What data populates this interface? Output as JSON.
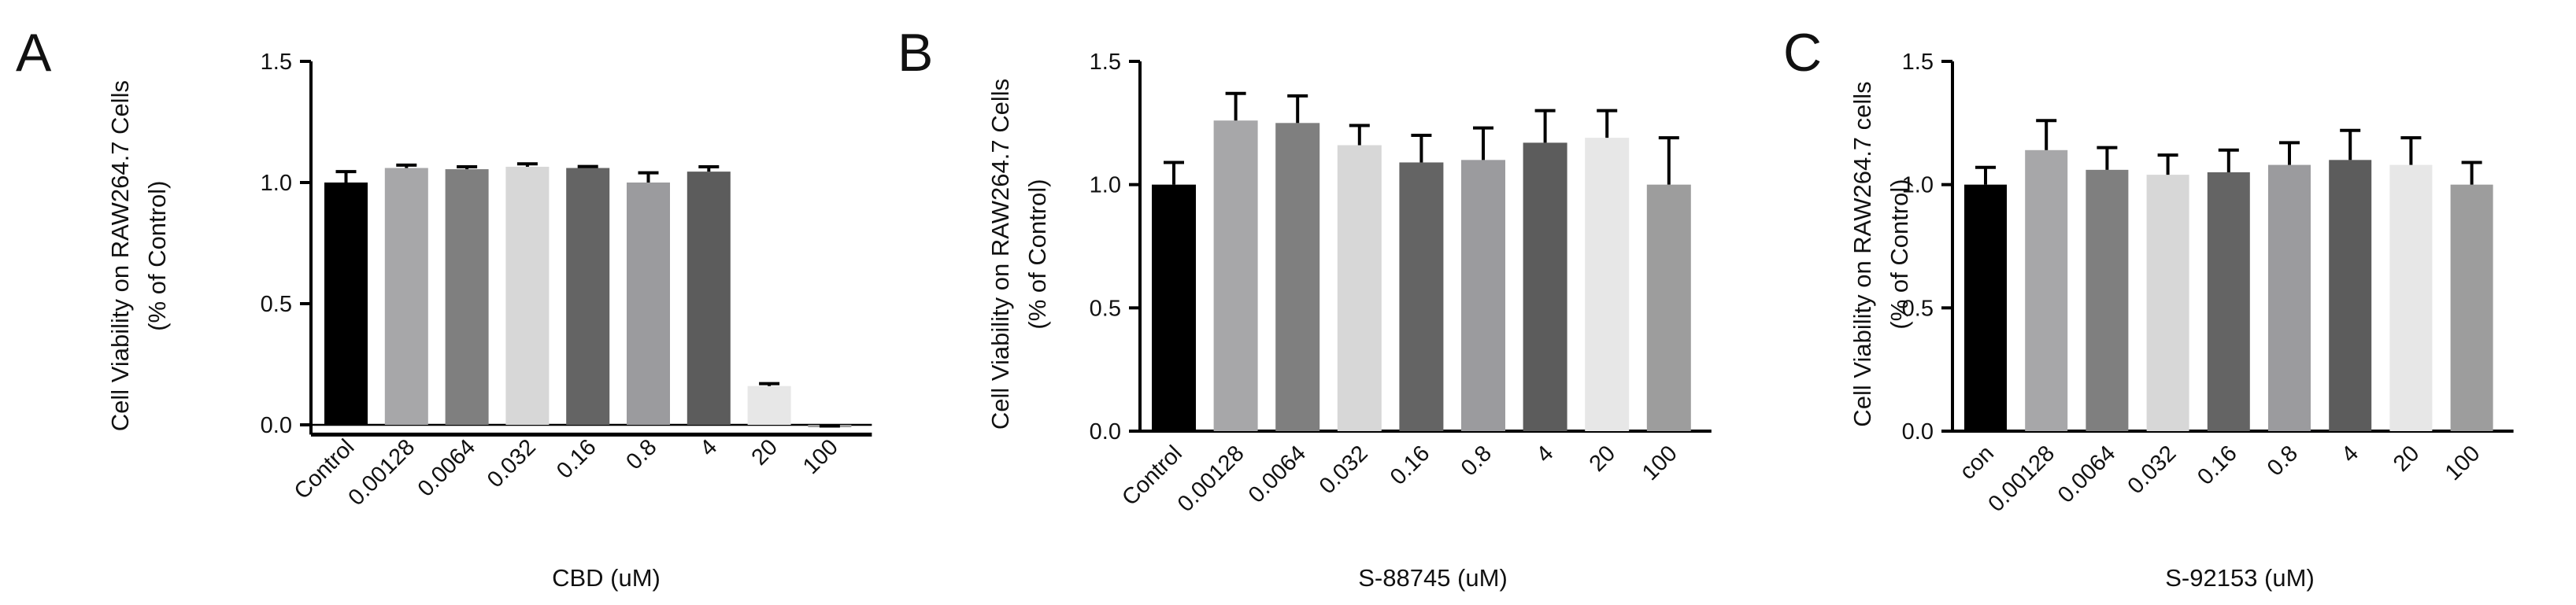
{
  "chart_data": [
    {
      "type": "bar",
      "panel_label": "A",
      "categories": [
        "Control",
        "0.00128",
        "0.0064",
        "0.032",
        "0.16",
        "0.8",
        "4",
        "20",
        "100"
      ],
      "values": [
        1.0,
        1.06,
        1.055,
        1.065,
        1.06,
        1.0,
        1.045,
        0.16,
        -0.01
      ],
      "errors": [
        0.045,
        0.012,
        0.01,
        0.012,
        0.006,
        0.04,
        0.02,
        0.01,
        0.005
      ],
      "colors": [
        "#000000",
        "#a7a7a9",
        "#7f7f7f",
        "#d7d7d7",
        "#646464",
        "#9b9b9e",
        "#5c5c5c",
        "#e7e7e7",
        "#9d9d9d"
      ],
      "xlabel": "CBD (uM)",
      "ylabel": [
        "Cell Viability on RAW264.7 Cells",
        "(% of Control)"
      ],
      "ylim": [
        -0.04,
        1.5
      ],
      "yticks": [
        0.0,
        0.5,
        1.0,
        1.5
      ],
      "ytick_labels": [
        "0.0",
        "0.5",
        "1.0",
        "1.5"
      ],
      "grid": false
    },
    {
      "type": "bar",
      "panel_label": "B",
      "categories": [
        "Control",
        "0.00128",
        "0.0064",
        "0.032",
        "0.16",
        "0.8",
        "4",
        "20",
        "100"
      ],
      "values": [
        1.0,
        1.26,
        1.25,
        1.16,
        1.09,
        1.1,
        1.17,
        1.19,
        1.0
      ],
      "errors": [
        0.09,
        0.11,
        0.11,
        0.08,
        0.11,
        0.13,
        0.13,
        0.11,
        0.19
      ],
      "colors": [
        "#000000",
        "#a7a7a9",
        "#7f7f7f",
        "#d7d7d7",
        "#646464",
        "#9b9b9e",
        "#5c5c5c",
        "#e7e7e7",
        "#9d9d9d"
      ],
      "xlabel": "S-88745 (uM)",
      "ylabel": [
        "Cell Viability on RAW264.7 Cells",
        "(% of Control)"
      ],
      "ylim": [
        0,
        1.5
      ],
      "yticks": [
        0.0,
        0.5,
        1.0,
        1.5
      ],
      "ytick_labels": [
        "0.0",
        "0.5",
        "1.0",
        "1.5"
      ],
      "grid": false
    },
    {
      "type": "bar",
      "panel_label": "C",
      "categories": [
        "con",
        "0.00128",
        "0.0064",
        "0.032",
        "0.16",
        "0.8",
        "4",
        "20",
        "100"
      ],
      "values": [
        1.0,
        1.14,
        1.06,
        1.04,
        1.05,
        1.08,
        1.1,
        1.08,
        1.0
      ],
      "errors": [
        0.07,
        0.12,
        0.09,
        0.08,
        0.09,
        0.09,
        0.12,
        0.11,
        0.09
      ],
      "colors": [
        "#000000",
        "#a7a7a9",
        "#7f7f7f",
        "#d7d7d7",
        "#646464",
        "#9b9b9e",
        "#5c5c5c",
        "#e7e7e7",
        "#9d9d9d"
      ],
      "xlabel": "S-92153 (uM)",
      "ylabel": [
        "Cell Viability on RAW264.7 cells",
        "(% of Control)"
      ],
      "ylim": [
        0,
        1.5
      ],
      "yticks": [
        0.0,
        0.5,
        1.0,
        1.5
      ],
      "ytick_labels": [
        "0.0",
        "0.5",
        "1.0",
        "1.5"
      ],
      "grid": false
    }
  ]
}
